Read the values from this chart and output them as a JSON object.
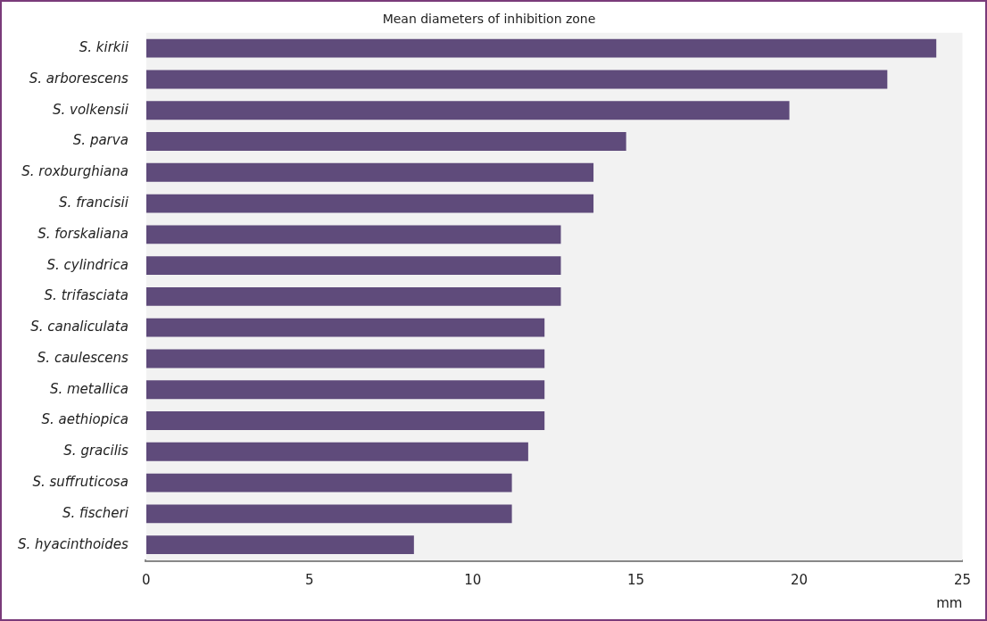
{
  "chart_data": {
    "type": "bar",
    "orientation": "horizontal",
    "title": "Mean diameters of inhibition zone",
    "xlabel": "mm",
    "categories": [
      "S. kirkii",
      "S. arborescens",
      "S. volkensii",
      "S. parva",
      "S. roxburghiana",
      "S. francisii",
      "S. forskaliana",
      "S. cylindrica",
      "S. trifasciata",
      "S. canaliculata",
      "S. caulescens",
      "S. metallica",
      "S. aethiopica",
      "S. gracilis",
      "S. suffruticosa",
      "S. fischeri",
      "S. hyacinthoides"
    ],
    "values": [
      24.2,
      22.7,
      19.7,
      14.7,
      13.7,
      13.7,
      12.7,
      12.7,
      12.7,
      12.2,
      12.2,
      12.2,
      12.2,
      11.7,
      11.2,
      11.2,
      8.2
    ],
    "color": "#5f4b7b",
    "xlim": [
      0,
      25
    ],
    "xticks": [
      0,
      5,
      10,
      15,
      20,
      25
    ],
    "grid": false,
    "legend": false
  }
}
